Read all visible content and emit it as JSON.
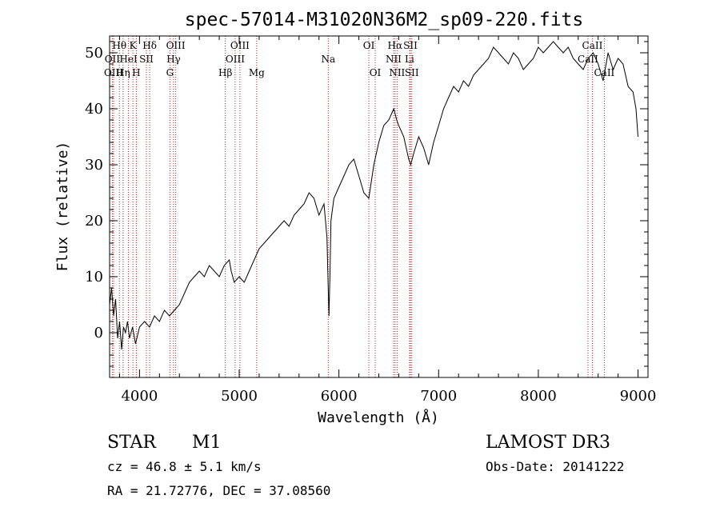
{
  "chart_data": {
    "type": "line",
    "title": "spec-57014-M31020N36M2_sp09-220.fits",
    "xlabel": "Wavelength (Å)",
    "ylabel": "Flux (relative)",
    "xlim": [
      3700,
      9100
    ],
    "ylim": [
      -8,
      53
    ],
    "xticks": [
      4000,
      5000,
      6000,
      7000,
      8000,
      9000
    ],
    "yticks": [
      0,
      10,
      20,
      30,
      40,
      50
    ],
    "series": [
      {
        "name": "flux",
        "x": [
          3700,
          3720,
          3740,
          3760,
          3780,
          3800,
          3820,
          3840,
          3860,
          3880,
          3900,
          3930,
          3960,
          4000,
          4050,
          4100,
          4150,
          4200,
          4250,
          4300,
          4350,
          4400,
          4450,
          4500,
          4550,
          4600,
          4650,
          4700,
          4750,
          4800,
          4850,
          4900,
          4920,
          4950,
          5000,
          5050,
          5100,
          5150,
          5200,
          5250,
          5300,
          5350,
          5400,
          5450,
          5500,
          5550,
          5600,
          5650,
          5700,
          5750,
          5800,
          5850,
          5880,
          5900,
          5910,
          5920,
          5950,
          6000,
          6050,
          6100,
          6150,
          6200,
          6250,
          6300,
          6350,
          6400,
          6450,
          6500,
          6550,
          6580,
          6600,
          6650,
          6700,
          6720,
          6750,
          6800,
          6850,
          6900,
          6950,
          7000,
          7050,
          7100,
          7150,
          7200,
          7250,
          7300,
          7350,
          7400,
          7450,
          7500,
          7550,
          7600,
          7650,
          7700,
          7750,
          7800,
          7850,
          7900,
          7950,
          8000,
          8050,
          8100,
          8150,
          8200,
          8250,
          8300,
          8350,
          8400,
          8450,
          8500,
          8550,
          8600,
          8650,
          8700,
          8750,
          8800,
          8850,
          8900,
          8950,
          8980,
          9000
        ],
        "values": [
          5,
          8,
          3,
          6,
          -1,
          2,
          -3,
          1,
          0,
          2,
          -1,
          1,
          -2,
          1,
          2,
          1,
          3,
          2,
          4,
          3,
          4,
          5,
          7,
          9,
          10,
          11,
          10,
          12,
          11,
          10,
          12,
          13,
          11,
          9,
          10,
          9,
          11,
          13,
          15,
          16,
          17,
          18,
          19,
          20,
          19,
          21,
          22,
          23,
          25,
          24,
          21,
          23,
          17,
          3,
          10,
          20,
          24,
          26,
          28,
          30,
          31,
          28,
          25,
          24,
          30,
          34,
          37,
          38,
          40,
          38,
          37,
          35,
          31,
          30,
          32,
          35,
          33,
          30,
          34,
          37,
          40,
          42,
          44,
          43,
          45,
          44,
          46,
          47,
          48,
          49,
          51,
          50,
          49,
          48,
          50,
          49,
          47,
          48,
          49,
          51,
          50,
          51,
          52,
          51,
          50,
          51,
          49,
          48,
          47,
          49,
          50,
          48,
          45,
          50,
          47,
          49,
          48,
          44,
          43,
          40,
          35
        ]
      }
    ],
    "spectral_lines": [
      {
        "name": "Hθ",
        "wl": 3798,
        "row": 1
      },
      {
        "name": "OII",
        "wl": 3727,
        "row": 2
      },
      {
        "name": "OIII",
        "wl": 3740,
        "row": 3
      },
      {
        "name": "K",
        "wl": 3934,
        "row": 1
      },
      {
        "name": "HeI",
        "wl": 3889,
        "row": 2
      },
      {
        "name": "Hη",
        "wl": 3835,
        "row": 3
      },
      {
        "name": "SII",
        "wl": 4069,
        "row": 2
      },
      {
        "name": "H",
        "wl": 3968,
        "row": 3
      },
      {
        "name": "Hδ",
        "wl": 4102,
        "row": 1
      },
      {
        "name": "OIII",
        "wl": 4363,
        "row": 1
      },
      {
        "name": "Hγ",
        "wl": 4341,
        "row": 2
      },
      {
        "name": "G",
        "wl": 4305,
        "row": 3
      },
      {
        "name": "Hβ",
        "wl": 4861,
        "row": 3
      },
      {
        "name": "OIII",
        "wl": 5007,
        "row": 1
      },
      {
        "name": "OIII",
        "wl": 4959,
        "row": 2
      },
      {
        "name": "Mg",
        "wl": 5175,
        "row": 3
      },
      {
        "name": "Na",
        "wl": 5893,
        "row": 2
      },
      {
        "name": "OI",
        "wl": 6300,
        "row": 1
      },
      {
        "name": "OI",
        "wl": 6364,
        "row": 3
      },
      {
        "name": "Hα",
        "wl": 6563,
        "row": 1
      },
      {
        "name": "NII",
        "wl": 6548,
        "row": 2
      },
      {
        "name": "NII",
        "wl": 6583,
        "row": 3
      },
      {
        "name": "SII",
        "wl": 6717,
        "row": 1
      },
      {
        "name": "Li",
        "wl": 6708,
        "row": 2
      },
      {
        "name": "SII",
        "wl": 6731,
        "row": 3
      },
      {
        "name": "CaII",
        "wl": 8542,
        "row": 1
      },
      {
        "name": "CaII",
        "wl": 8498,
        "row": 2
      },
      {
        "name": "CaII",
        "wl": 8662,
        "row": 3
      }
    ]
  },
  "info": {
    "object_class": "STAR",
    "subclass": "M1",
    "survey": "LAMOST DR3",
    "cz": "cz = 46.8 ± 5.1 km/s",
    "obs_date": "Obs-Date: 20141222",
    "coords": "RA =  21.72776, DEC =  37.08560"
  },
  "colors": {
    "spectrum": "#000000",
    "line_marker": "#b22222",
    "axes": "#000000"
  }
}
